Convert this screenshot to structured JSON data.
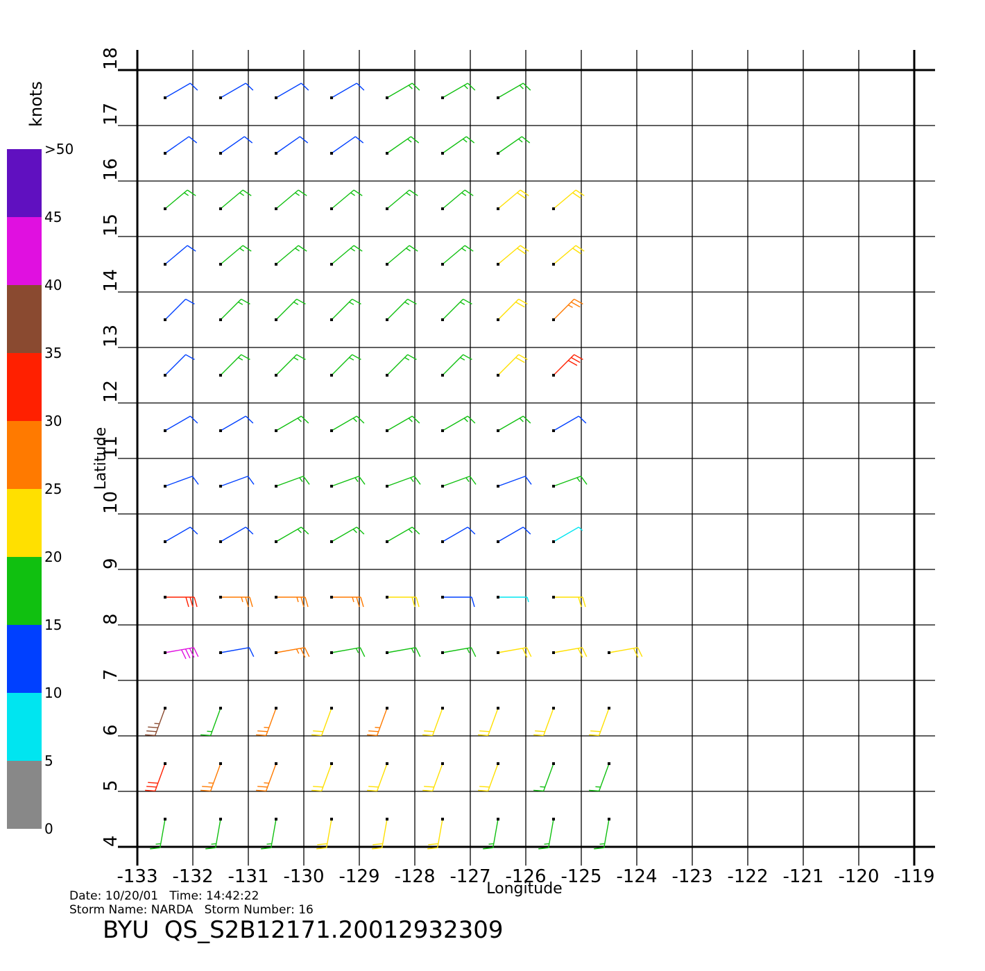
{
  "chart_data": {
    "type": "barb",
    "xlabel": "Longitude",
    "ylabel": "Latitude",
    "xlim": [
      -133,
      -119
    ],
    "ylim": [
      4,
      18
    ],
    "xticks": [
      -133,
      -132,
      -131,
      -130,
      -129,
      -128,
      -127,
      -126,
      -125,
      -124,
      -123,
      -122,
      -121,
      -120,
      -119
    ],
    "yticks": [
      4,
      5,
      6,
      7,
      8,
      9,
      10,
      11,
      12,
      13,
      14,
      15,
      16,
      17,
      18
    ],
    "grid": true,
    "colorbar": {
      "title": "knots",
      "lim": [
        0,
        50
      ],
      "ticks": [
        0,
        5,
        10,
        15,
        20,
        25,
        30,
        35,
        40,
        45,
        {
          "value": 50,
          "label": ">50"
        }
      ],
      "colors": [
        "#888888",
        "#00e5f0",
        "#0040ff",
        "#10c010",
        "#ffe000",
        "#ff7a00",
        "#ff2000",
        "#8a4a30",
        "#e010e0",
        "#6010c0"
      ]
    },
    "wind": {
      "lon": [
        -132.5,
        -131.5,
        -130.5,
        -129.5,
        -128.5,
        -127.5,
        -126.5,
        -125.5,
        -124.5
      ],
      "lat": [
        17.5,
        16.5,
        15.5,
        14.5,
        13.5,
        12.5,
        11.5,
        10.5,
        9.5,
        8.5,
        7.5,
        6.5,
        5.5,
        4.5
      ],
      "speed": [
        [
          12,
          12,
          13,
          14,
          16,
          16,
          15,
          null,
          null
        ],
        [
          14,
          13,
          12,
          12,
          16,
          17,
          19,
          null,
          null
        ],
        [
          16,
          16,
          15,
          17,
          18,
          18,
          21,
          23,
          null
        ],
        [
          13,
          16,
          16,
          17,
          18,
          18,
          22,
          23,
          null
        ],
        [
          14,
          17,
          18,
          18,
          18,
          18,
          24,
          27,
          null
        ],
        [
          13,
          17,
          17,
          17,
          18,
          18,
          22,
          30,
          null
        ],
        [
          12,
          14,
          16,
          17,
          17,
          18,
          15,
          14,
          null
        ],
        [
          12,
          13,
          16,
          17,
          17,
          16,
          14,
          16,
          null
        ],
        [
          13,
          14,
          16,
          16,
          15,
          14,
          11,
          8,
          null
        ],
        [
          30,
          27,
          29,
          28,
          24,
          10,
          8,
          22,
          null
        ],
        [
          42,
          13,
          26,
          18,
          15,
          16,
          20,
          23,
          22
        ],
        [
          35,
          18,
          27,
          24,
          28,
          22,
          22,
          23,
          23
        ],
        [
          33,
          29,
          26,
          22,
          23,
          22,
          22,
          19,
          18
        ],
        [
          18,
          17,
          18,
          20,
          21,
          21,
          19,
          18,
          17
        ]
      ],
      "direction": [
        60,
        55,
        50,
        50,
        45,
        45,
        60,
        70,
        60,
        90,
        80,
        200,
        200,
        190
      ]
    },
    "footer": [
      "Date: 10/20/01   Time: 14:42:22",
      "Storm Name: NARDA   Storm Number: 16"
    ],
    "title": "BYU  QS_S2B12171.20012932309"
  }
}
